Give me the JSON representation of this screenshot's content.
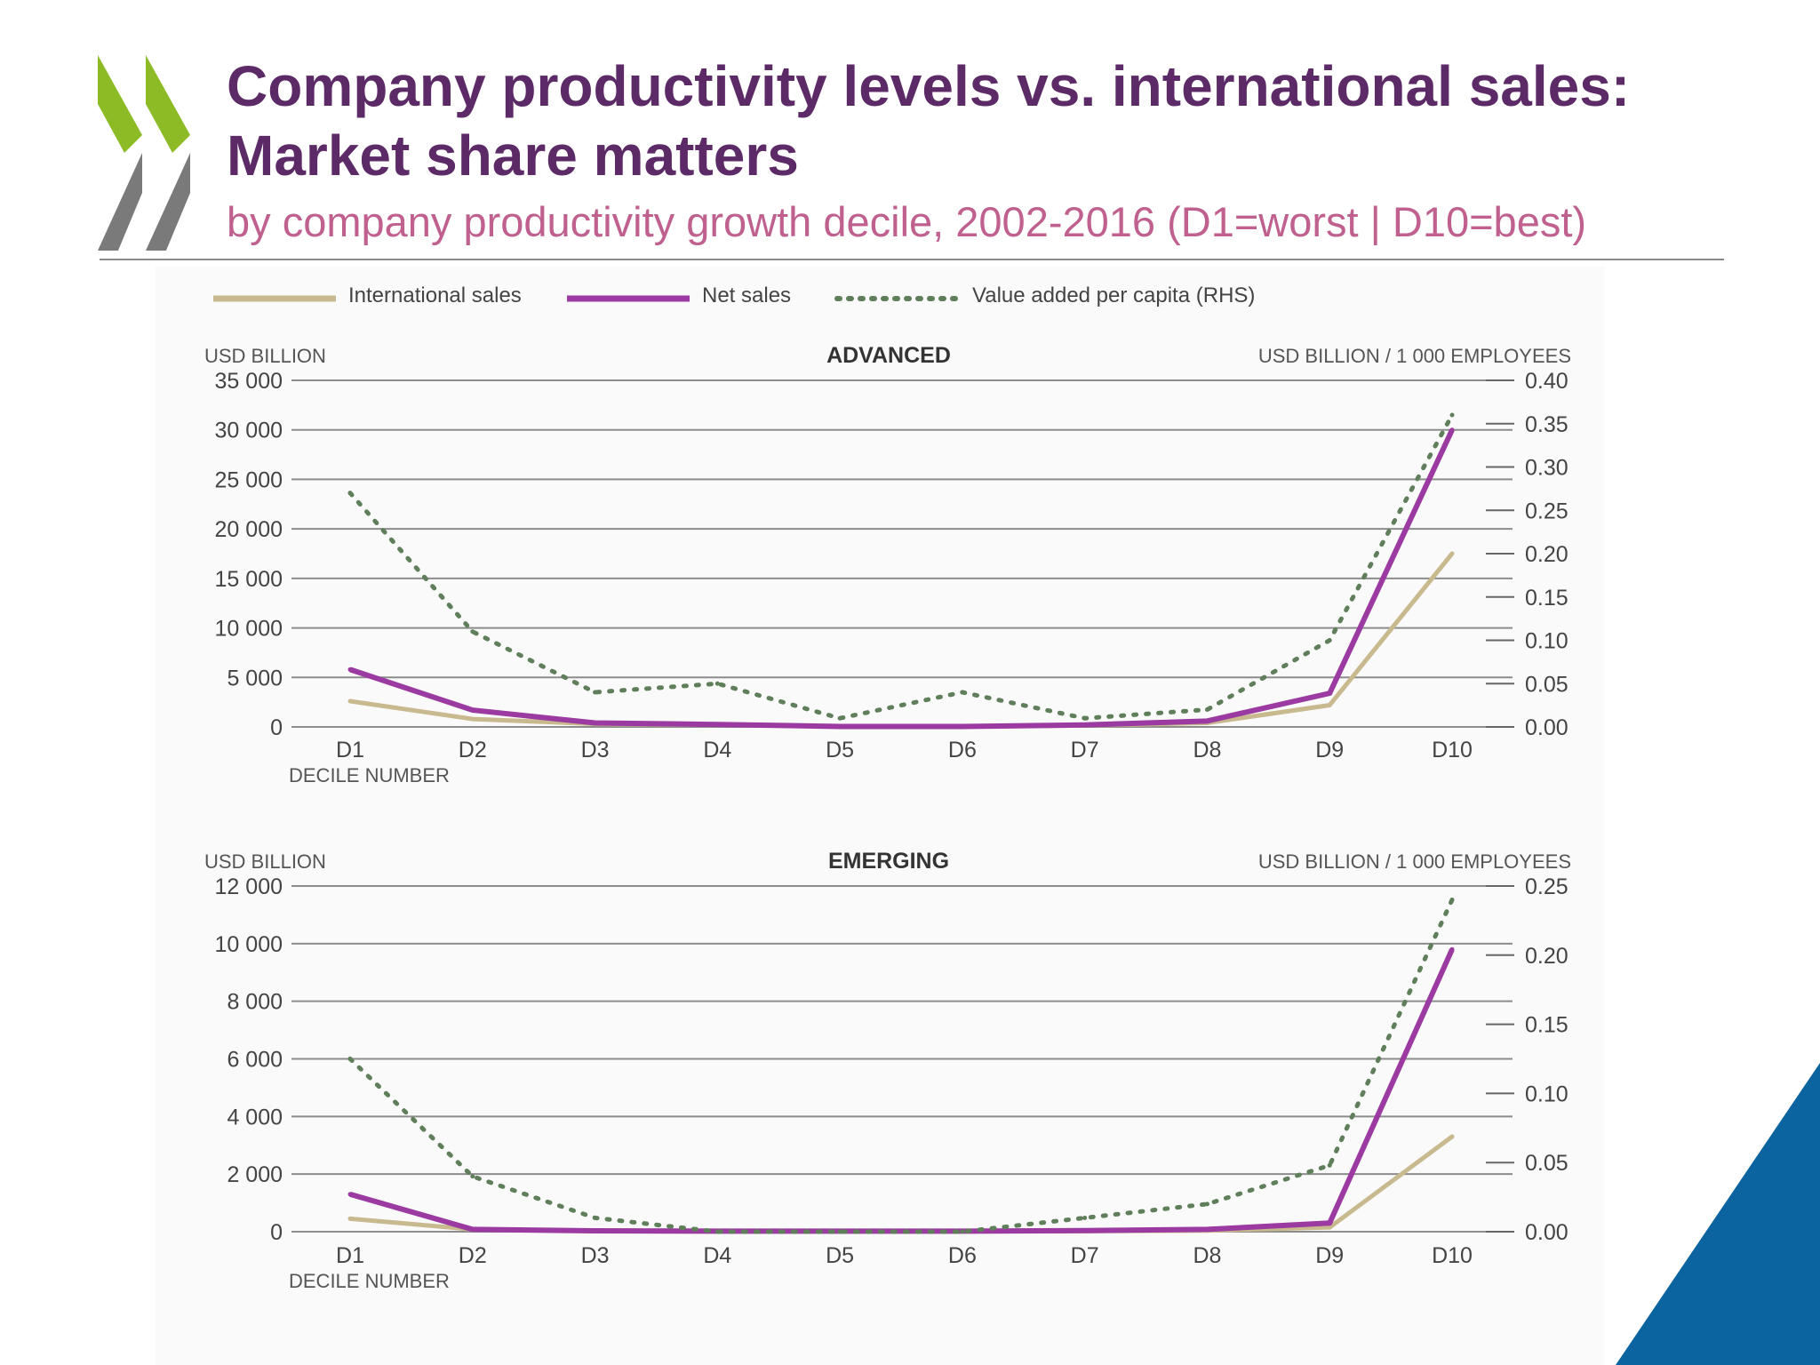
{
  "slide": {
    "title_line1": "Company productivity levels vs. international sales:",
    "title_line2": "Market share matters",
    "subtitle": "by company productivity growth decile, 2002-2016 (D1=worst | D10=best)"
  },
  "colors": {
    "title": "#5c2a66",
    "subtitle": "#c0608f",
    "international_sales": "#c8b98e",
    "net_sales": "#9b3aa0",
    "value_added": "#5f7e5a",
    "logo_green": "#8dbb25",
    "logo_grey": "#7a7a7a",
    "corner_blue": "#0b63a0"
  },
  "legend": {
    "international_sales": "International sales",
    "net_sales": "Net sales",
    "value_added": "Value added per capita (RHS)"
  },
  "chart_data": [
    {
      "type": "line",
      "title": "ADVANCED",
      "ylabel_left": "USD BILLION",
      "ylabel_right": "USD BILLION / 1 000 EMPLOYEES",
      "xlabel": "DECILE NUMBER",
      "categories": [
        "D1",
        "D2",
        "D3",
        "D4",
        "D5",
        "D6",
        "D7",
        "D8",
        "D9",
        "D10"
      ],
      "ylim_left": [
        0,
        35000
      ],
      "ylim_right": [
        0,
        0.4
      ],
      "yticks_left": [
        "0",
        "5 000",
        "10 000",
        "15 000",
        "20 000",
        "25 000",
        "30 000",
        "35 000"
      ],
      "yticks_right": [
        "0.00",
        "0.05",
        "0.10",
        "0.15",
        "0.20",
        "0.25",
        "0.30",
        "0.35",
        "0.40"
      ],
      "grid": true,
      "legend_position": "top",
      "series": [
        {
          "name": "International sales",
          "axis": "left",
          "values": [
            2600,
            800,
            300,
            200,
            50,
            50,
            150,
            400,
            2200,
            17500
          ]
        },
        {
          "name": "Net sales",
          "axis": "left",
          "values": [
            5800,
            1700,
            400,
            250,
            50,
            50,
            200,
            600,
            3400,
            30000
          ]
        },
        {
          "name": "Value added per capita (RHS)",
          "axis": "right",
          "values": [
            0.27,
            0.11,
            0.04,
            0.05,
            0.01,
            0.04,
            0.01,
            0.02,
            0.1,
            0.36
          ]
        }
      ]
    },
    {
      "type": "line",
      "title": "EMERGING",
      "ylabel_left": "USD BILLION",
      "ylabel_right": "USD BILLION / 1 000 EMPLOYEES",
      "xlabel": "DECILE NUMBER",
      "categories": [
        "D1",
        "D2",
        "D3",
        "D4",
        "D5",
        "D6",
        "D7",
        "D8",
        "D9",
        "D10"
      ],
      "ylim_left": [
        0,
        12000
      ],
      "ylim_right": [
        0,
        0.25
      ],
      "yticks_left": [
        "0",
        "2 000",
        "4 000",
        "6 000",
        "8 000",
        "10 000",
        "12 000"
      ],
      "yticks_right": [
        "0.00",
        "0.05",
        "0.10",
        "0.15",
        "0.20",
        "0.25"
      ],
      "grid": true,
      "series": [
        {
          "name": "International sales",
          "axis": "left",
          "values": [
            450,
            80,
            20,
            10,
            10,
            10,
            20,
            40,
            150,
            3300
          ]
        },
        {
          "name": "Net sales",
          "axis": "left",
          "values": [
            1300,
            80,
            30,
            20,
            20,
            20,
            40,
            80,
            300,
            9800
          ]
        },
        {
          "name": "Value added per capita (RHS)",
          "axis": "right",
          "values": [
            0.125,
            0.04,
            0.01,
            0.0,
            0.0,
            0.0,
            0.01,
            0.02,
            0.048,
            0.24
          ]
        }
      ]
    }
  ]
}
